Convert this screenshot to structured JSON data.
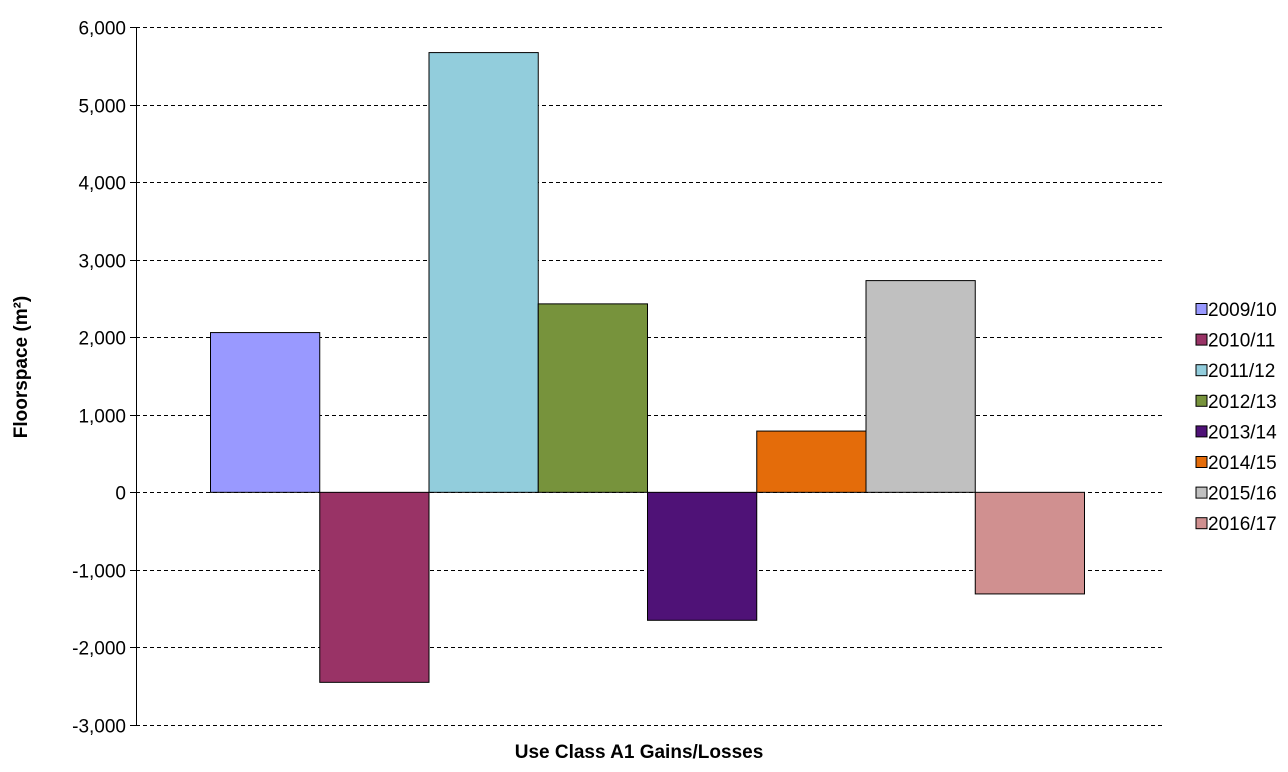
{
  "chart_data": {
    "type": "bar",
    "title": "",
    "xlabel": "Use Class A1 Gains/Losses",
    "ylabel": "Floorspace (m²)",
    "ylim": [
      -3000,
      6000
    ],
    "yticks": [
      6000,
      5000,
      4000,
      3000,
      2000,
      1000,
      0,
      -1000,
      -2000,
      -3000
    ],
    "ytick_labels": [
      "6,000",
      "5,000",
      "4,000",
      "3,000",
      "2,000",
      "1,000",
      "0",
      "-1,000",
      "-2,000",
      "-3,000"
    ],
    "grid": true,
    "legend_position": "right",
    "series": [
      {
        "name": "2009/10",
        "value": 2060,
        "color": "#9999ff"
      },
      {
        "name": "2010/11",
        "value": -2450,
        "color": "#993366"
      },
      {
        "name": "2011/12",
        "value": 5670,
        "color": "#92cddc"
      },
      {
        "name": "2012/13",
        "value": 2430,
        "color": "#77933c"
      },
      {
        "name": "2013/14",
        "value": -1650,
        "color": "#4f1277"
      },
      {
        "name": "2014/15",
        "value": 790,
        "color": "#e46c0a"
      },
      {
        "name": "2015/16",
        "value": 2730,
        "color": "#c0c0c0"
      },
      {
        "name": "2016/17",
        "value": -1310,
        "color": "#d09090"
      }
    ]
  }
}
